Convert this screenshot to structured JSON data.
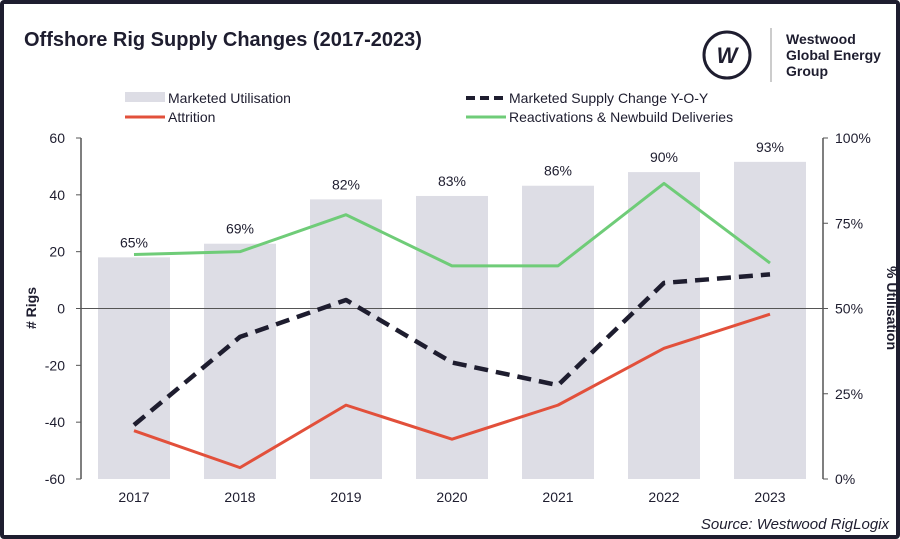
{
  "logo": {
    "mark": "W",
    "line1": "Westwood",
    "line2": "Global Energy",
    "line3": "Group"
  },
  "source": "Source: Westwood RigLogix",
  "colors": {
    "bars": "#dddde5",
    "attrition": "#e2503b",
    "reactivations": "#6fcc78",
    "supply": "#1e1d2f",
    "text": "#1e1d2f"
  },
  "chart_data": {
    "type": "bar+line",
    "title": "Offshore Rig Supply Changes (2017-2023)",
    "categories": [
      "2017",
      "2018",
      "2019",
      "2020",
      "2021",
      "2022",
      "2023"
    ],
    "ylabel": "# Rigs",
    "y2label": "% Utilisation",
    "ylim": [
      -60,
      60
    ],
    "yticks": [
      "60",
      "40",
      "20",
      "0",
      "-20",
      "-40",
      "-60"
    ],
    "y2lim": [
      0,
      100
    ],
    "y2ticks": [
      "100%",
      "75%",
      "50%",
      "25%",
      "0%"
    ],
    "legend_position": "top",
    "series": [
      {
        "name": "Marketed Utilisation",
        "type": "bar",
        "axis": "right",
        "values": [
          65,
          69,
          82,
          83,
          86,
          90,
          93
        ],
        "labels": [
          "65%",
          "69%",
          "82%",
          "83%",
          "86%",
          "90%",
          "93%"
        ]
      },
      {
        "name": "Marketed Supply Change Y-O-Y",
        "type": "line",
        "style": "dashed",
        "values": [
          -41,
          -10,
          3,
          -19,
          -27,
          9,
          12
        ]
      },
      {
        "name": "Attrition",
        "type": "line",
        "values": [
          -43,
          -56,
          -34,
          -46,
          -34,
          -14,
          -2
        ]
      },
      {
        "name": "Reactivations & Newbuild Deliveries",
        "type": "line",
        "values": [
          19,
          20,
          33,
          15,
          15,
          44,
          16
        ]
      }
    ]
  }
}
